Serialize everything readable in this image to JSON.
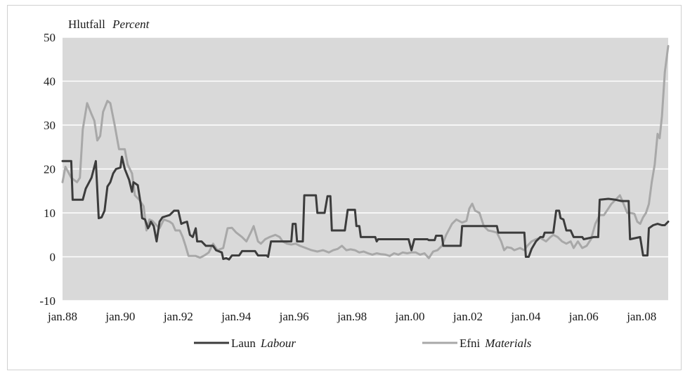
{
  "chart_data": {
    "type": "line",
    "title": "Hlutfall",
    "title_italic": "Percent",
    "ylim": [
      -10,
      50
    ],
    "yticks": [
      -10,
      0,
      10,
      20,
      30,
      40,
      50
    ],
    "xlim": [
      1988.0,
      2008.917
    ],
    "xtick_labels": [
      "jan.88",
      "jan.90",
      "jan.92",
      "jan.94",
      "jan.96",
      "jan.98",
      "jan.00",
      "jan.02",
      "jan.04",
      "jan.06",
      "jan.08"
    ],
    "xtick_years": [
      1988,
      1990,
      1992,
      1994,
      1996,
      1998,
      2000,
      2002,
      2004,
      2006,
      2008
    ],
    "grid": true,
    "legend_position": "bottom",
    "series": [
      {
        "name": "Laun",
        "name_italic": "Labour",
        "color": "#3c3c3c",
        "points": [
          [
            1988.0,
            21.8
          ],
          [
            1988.3,
            21.8
          ],
          [
            1988.35,
            13
          ],
          [
            1988.7,
            13
          ],
          [
            1988.8,
            15.5
          ],
          [
            1989.0,
            18
          ],
          [
            1989.15,
            21.8
          ],
          [
            1989.25,
            8.8
          ],
          [
            1989.35,
            9
          ],
          [
            1989.45,
            10.5
          ],
          [
            1989.55,
            16
          ],
          [
            1989.65,
            17
          ],
          [
            1989.75,
            19
          ],
          [
            1989.85,
            20
          ],
          [
            1990.0,
            20.3
          ],
          [
            1990.05,
            22.8
          ],
          [
            1990.15,
            20
          ],
          [
            1990.3,
            17.5
          ],
          [
            1990.4,
            14.8
          ],
          [
            1990.45,
            17
          ],
          [
            1990.6,
            16.3
          ],
          [
            1990.7,
            12
          ],
          [
            1990.75,
            8.8
          ],
          [
            1990.85,
            8.5
          ],
          [
            1990.95,
            6.5
          ],
          [
            1991.0,
            7
          ],
          [
            1991.05,
            8
          ],
          [
            1991.15,
            7
          ],
          [
            1991.25,
            3.5
          ],
          [
            1991.35,
            8
          ],
          [
            1991.45,
            9
          ],
          [
            1991.55,
            9.2
          ],
          [
            1991.7,
            9.5
          ],
          [
            1991.85,
            10.5
          ],
          [
            1992.0,
            10.5
          ],
          [
            1992.1,
            7.5
          ],
          [
            1992.2,
            7.8
          ],
          [
            1992.3,
            8
          ],
          [
            1992.4,
            5
          ],
          [
            1992.5,
            4.5
          ],
          [
            1992.6,
            6.5
          ],
          [
            1992.65,
            3.5
          ],
          [
            1992.8,
            3.5
          ],
          [
            1992.95,
            2.5
          ],
          [
            1993.2,
            2.5
          ],
          [
            1993.3,
            1.5
          ],
          [
            1993.5,
            1
          ],
          [
            1993.55,
            -0.5
          ],
          [
            1993.65,
            -0.3
          ],
          [
            1993.75,
            -0.6
          ],
          [
            1993.85,
            0.3
          ],
          [
            1994.1,
            0.3
          ],
          [
            1994.2,
            1.3
          ],
          [
            1994.65,
            1.3
          ],
          [
            1994.75,
            0.3
          ],
          [
            1995.05,
            0.3
          ],
          [
            1995.1,
            0
          ],
          [
            1995.2,
            3.5
          ],
          [
            1995.9,
            3.5
          ],
          [
            1995.95,
            7.5
          ],
          [
            1996.05,
            7.5
          ],
          [
            1996.1,
            3.5
          ],
          [
            1996.3,
            3.5
          ],
          [
            1996.35,
            14
          ],
          [
            1996.75,
            14
          ],
          [
            1996.8,
            10
          ],
          [
            1997.05,
            10
          ],
          [
            1997.15,
            13.8
          ],
          [
            1997.25,
            13.8
          ],
          [
            1997.3,
            6
          ],
          [
            1997.75,
            6
          ],
          [
            1997.85,
            10.7
          ],
          [
            1998.1,
            10.7
          ],
          [
            1998.15,
            7
          ],
          [
            1998.25,
            7
          ],
          [
            1998.3,
            4.5
          ],
          [
            1998.8,
            4.5
          ],
          [
            1998.85,
            3.5
          ],
          [
            1998.9,
            4
          ],
          [
            1999.95,
            4
          ],
          [
            2000.05,
            1.5
          ],
          [
            2000.15,
            4
          ],
          [
            2000.6,
            4
          ],
          [
            2000.65,
            3.8
          ],
          [
            2000.85,
            3.8
          ],
          [
            2000.9,
            4.8
          ],
          [
            2001.1,
            4.8
          ],
          [
            2001.15,
            2.5
          ],
          [
            2001.75,
            2.5
          ],
          [
            2001.8,
            7
          ],
          [
            2002.5,
            7
          ],
          [
            2002.55,
            7
          ],
          [
            2003.0,
            7
          ],
          [
            2003.05,
            5.5
          ],
          [
            2003.95,
            5.5
          ],
          [
            2004.0,
            0
          ],
          [
            2004.1,
            0
          ],
          [
            2004.2,
            1.8
          ],
          [
            2004.35,
            3.5
          ],
          [
            2004.5,
            4.5
          ],
          [
            2004.6,
            4.5
          ],
          [
            2004.65,
            5.5
          ],
          [
            2004.95,
            5.5
          ],
          [
            2005.05,
            10.5
          ],
          [
            2005.15,
            10.5
          ],
          [
            2005.2,
            8.8
          ],
          [
            2005.3,
            8.5
          ],
          [
            2005.4,
            6
          ],
          [
            2005.55,
            6
          ],
          [
            2005.65,
            4.5
          ],
          [
            2005.95,
            4.5
          ],
          [
            2006.0,
            4
          ],
          [
            2006.35,
            4.5
          ],
          [
            2006.5,
            4.5
          ],
          [
            2006.55,
            13
          ],
          [
            2006.85,
            13.2
          ],
          [
            2007.1,
            13
          ],
          [
            2007.3,
            12.7
          ],
          [
            2007.45,
            12.7
          ],
          [
            2007.55,
            12.7
          ],
          [
            2007.6,
            4
          ],
          [
            2007.95,
            4.5
          ],
          [
            2008.05,
            0.3
          ],
          [
            2008.2,
            0.3
          ],
          [
            2008.25,
            6.5
          ],
          [
            2008.4,
            7.2
          ],
          [
            2008.55,
            7.5
          ],
          [
            2008.7,
            7.2
          ],
          [
            2008.8,
            7.2
          ],
          [
            2008.917,
            8
          ]
        ]
      },
      {
        "name": "Efni",
        "name_italic": "Materials",
        "color": "#a8a8a8",
        "points": [
          [
            1988.0,
            17
          ],
          [
            1988.1,
            20.5
          ],
          [
            1988.3,
            18
          ],
          [
            1988.5,
            17
          ],
          [
            1988.6,
            18
          ],
          [
            1988.7,
            29
          ],
          [
            1988.85,
            35
          ],
          [
            1989.0,
            32.5
          ],
          [
            1989.1,
            31
          ],
          [
            1989.2,
            26.5
          ],
          [
            1989.3,
            27.5
          ],
          [
            1989.4,
            33
          ],
          [
            1989.55,
            35.5
          ],
          [
            1989.65,
            35
          ],
          [
            1989.8,
            30
          ],
          [
            1989.95,
            24.5
          ],
          [
            1990.15,
            24.5
          ],
          [
            1990.25,
            21
          ],
          [
            1990.4,
            19
          ],
          [
            1990.5,
            14
          ],
          [
            1990.65,
            13
          ],
          [
            1990.8,
            11.5
          ],
          [
            1990.9,
            6
          ],
          [
            1991.0,
            8.5
          ],
          [
            1991.1,
            8.2
          ],
          [
            1991.2,
            7.5
          ],
          [
            1991.35,
            6.5
          ],
          [
            1991.5,
            8.5
          ],
          [
            1991.7,
            8
          ],
          [
            1991.8,
            7.5
          ],
          [
            1991.9,
            6
          ],
          [
            1992.05,
            6
          ],
          [
            1992.15,
            4.5
          ],
          [
            1992.25,
            2.5
          ],
          [
            1992.35,
            0.2
          ],
          [
            1992.6,
            0.2
          ],
          [
            1992.75,
            -0.2
          ],
          [
            1992.9,
            0.3
          ],
          [
            1993.05,
            1
          ],
          [
            1993.2,
            3
          ],
          [
            1993.35,
            1.5
          ],
          [
            1993.55,
            2
          ],
          [
            1993.7,
            6.5
          ],
          [
            1993.85,
            6.6
          ],
          [
            1994.0,
            5.5
          ],
          [
            1994.2,
            4.5
          ],
          [
            1994.35,
            3.5
          ],
          [
            1994.5,
            5.5
          ],
          [
            1994.6,
            7
          ],
          [
            1994.75,
            3.5
          ],
          [
            1994.85,
            3
          ],
          [
            1995.0,
            4
          ],
          [
            1995.15,
            4.5
          ],
          [
            1995.35,
            5
          ],
          [
            1995.5,
            4.5
          ],
          [
            1995.6,
            3.5
          ],
          [
            1995.75,
            3
          ],
          [
            1995.9,
            2.8
          ],
          [
            1996.05,
            3
          ],
          [
            1996.2,
            2.5
          ],
          [
            1996.4,
            2
          ],
          [
            1996.6,
            1.5
          ],
          [
            1996.8,
            1.2
          ],
          [
            1997.0,
            1.5
          ],
          [
            1997.2,
            1
          ],
          [
            1997.35,
            1.5
          ],
          [
            1997.5,
            1.8
          ],
          [
            1997.65,
            2.5
          ],
          [
            1997.8,
            1.5
          ],
          [
            1997.95,
            1.7
          ],
          [
            1998.1,
            1.5
          ],
          [
            1998.25,
            1
          ],
          [
            1998.4,
            1.2
          ],
          [
            1998.55,
            0.8
          ],
          [
            1998.7,
            0.5
          ],
          [
            1998.85,
            0.8
          ],
          [
            1999.0,
            0.6
          ],
          [
            1999.15,
            0.5
          ],
          [
            1999.3,
            0.2
          ],
          [
            1999.45,
            0.8
          ],
          [
            1999.6,
            0.5
          ],
          [
            1999.75,
            1
          ],
          [
            1999.9,
            0.8
          ],
          [
            2000.05,
            1
          ],
          [
            2000.2,
            1
          ],
          [
            2000.35,
            0.5
          ],
          [
            2000.5,
            0.8
          ],
          [
            2000.65,
            -0.3
          ],
          [
            2000.8,
            1.2
          ],
          [
            2000.95,
            1.5
          ],
          [
            2001.1,
            2.5
          ],
          [
            2001.25,
            5
          ],
          [
            2001.45,
            7.5
          ],
          [
            2001.6,
            8.5
          ],
          [
            2001.8,
            7.8
          ],
          [
            2001.95,
            8.2
          ],
          [
            2002.05,
            11
          ],
          [
            2002.15,
            12.1
          ],
          [
            2002.25,
            10.5
          ],
          [
            2002.4,
            10
          ],
          [
            2002.55,
            7
          ],
          [
            2002.7,
            6
          ],
          [
            2002.85,
            5.8
          ],
          [
            2003.0,
            5.5
          ],
          [
            2003.15,
            3.5
          ],
          [
            2003.25,
            1.5
          ],
          [
            2003.35,
            2.2
          ],
          [
            2003.5,
            2
          ],
          [
            2003.6,
            1.5
          ],
          [
            2003.8,
            2
          ],
          [
            2003.95,
            1.5
          ],
          [
            2004.05,
            2.5
          ],
          [
            2004.2,
            3.5
          ],
          [
            2004.35,
            4
          ],
          [
            2004.5,
            4.3
          ],
          [
            2004.7,
            3.5
          ],
          [
            2004.85,
            4.5
          ],
          [
            2004.95,
            5
          ],
          [
            2005.1,
            4.5
          ],
          [
            2005.25,
            3.5
          ],
          [
            2005.4,
            3
          ],
          [
            2005.55,
            3.5
          ],
          [
            2005.65,
            2
          ],
          [
            2005.8,
            3.5
          ],
          [
            2005.95,
            2
          ],
          [
            2006.1,
            2.5
          ],
          [
            2006.25,
            4
          ],
          [
            2006.4,
            7.5
          ],
          [
            2006.55,
            9.5
          ],
          [
            2006.7,
            9.5
          ],
          [
            2006.85,
            11
          ],
          [
            2006.95,
            12
          ],
          [
            2007.1,
            13
          ],
          [
            2007.25,
            14
          ],
          [
            2007.35,
            12.5
          ],
          [
            2007.5,
            10
          ],
          [
            2007.6,
            10
          ],
          [
            2007.75,
            9.8
          ],
          [
            2007.85,
            8
          ],
          [
            2007.95,
            7.5
          ],
          [
            2008.05,
            9
          ],
          [
            2008.15,
            10
          ],
          [
            2008.25,
            12
          ],
          [
            2008.35,
            17
          ],
          [
            2008.45,
            21
          ],
          [
            2008.55,
            28
          ],
          [
            2008.62,
            27
          ],
          [
            2008.7,
            32
          ],
          [
            2008.8,
            42
          ],
          [
            2008.917,
            48
          ]
        ]
      }
    ]
  }
}
